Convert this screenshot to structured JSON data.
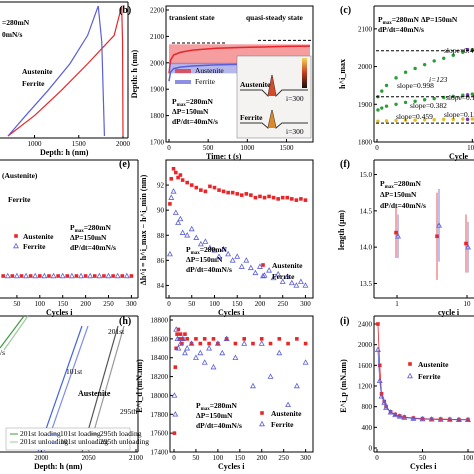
{
  "figure": {
    "panel_letters": [
      "(b)",
      "(c)",
      "(e)",
      "(f)",
      "(h)",
      "(i)"
    ]
  },
  "colors": {
    "austenite": "#e8262a",
    "ferrite": "#5b5fd6",
    "scatter_green": "#2a9d3a",
    "scatter_purple": "#7b2fb5",
    "scatter_yellow": "#e0c020",
    "ref_dark": "#222222"
  },
  "chart_data": [
    {
      "id": "a",
      "type": "line",
      "texts": {
        "top1": "=280mN",
        "top2": "0mN/s",
        "leg1": "Austenite",
        "leg2": "Ferrite"
      },
      "xlabel": "Depth: h (nm)",
      "xticks": [
        "1000",
        "1500",
        "2000"
      ],
      "xlim": [
        700,
        2000
      ],
      "series": [
        {
          "name": "Austenite",
          "color": "#e8262a",
          "load_x": [
            700,
            1000,
            1300,
            1600,
            1900,
            1985
          ],
          "unload_x": [
            1985,
            1995,
            2000
          ]
        },
        {
          "name": "Ferrite",
          "color": "#5b5fd6",
          "load_x": [
            700,
            900,
            1150,
            1400,
            1600,
            1720
          ],
          "unload_x": [
            1720,
            1760,
            1790
          ]
        }
      ]
    },
    {
      "id": "b",
      "type": "line",
      "texts": {
        "t1": "transient state",
        "t2": "quasi-steady state",
        "p1": "P",
        "p1sub": "max",
        "p1v": "=280mN",
        "p2": "ΔP=150mN",
        "p3": "dP/dt=40mN/s",
        "i1": "i=300",
        "i2": "i=300"
      },
      "legend": [
        "Austenite",
        "Ferrite"
      ],
      "inset_labels": [
        "Austenite",
        "Ferrite"
      ],
      "xlabel": "Time: t (s)",
      "ylabel": "Depth: h (nm)",
      "xticks": [
        "0",
        "500",
        "1000",
        "1500"
      ],
      "yticks": [
        "1700",
        "1800",
        "1900",
        "2000",
        "2100",
        "2200"
      ],
      "xlim": [
        0,
        1800
      ],
      "ylim": [
        1700,
        2200
      ],
      "series": [
        {
          "name": "Austenite",
          "color": "#e8262a",
          "band": [
            1995,
            2070
          ],
          "t": [
            0,
            20,
            60,
            150,
            300,
            600,
            900,
            1200,
            1500,
            1800
          ],
          "h": [
            1960,
            2010,
            2030,
            2040,
            2048,
            2055,
            2058,
            2060,
            2062,
            2063
          ]
        },
        {
          "name": "Ferrite",
          "color": "#5b5fd6",
          "band": [
            1960,
            2000
          ],
          "t": [
            0,
            20,
            60,
            150,
            300,
            600,
            900,
            1200,
            1500,
            1800
          ],
          "h": [
            1930,
            1965,
            1978,
            1984,
            1988,
            1992,
            1994,
            1995,
            1996,
            1997
          ]
        }
      ]
    },
    {
      "id": "c",
      "type": "scatter",
      "texts": {
        "p1": "P",
        "p1sub": "max",
        "p1v": "=280mN ΔP=150mN",
        "p2": "dP/dt=40mN/s",
        "i123": "i=123",
        "xlabel_partial": "Cycle"
      },
      "slopes": [
        "slope=0.467",
        "slope=0.998",
        "slope=0.156",
        "slope=0.382",
        "slope=0.459",
        "slope=0.131"
      ],
      "ylabel": "h^i_max",
      "xticks": [
        "0",
        "100"
      ],
      "yticks": [
        "1800",
        "1900",
        "2000",
        "2100"
      ],
      "xlim": [
        0,
        150
      ],
      "ylim": [
        1800,
        2150
      ],
      "series": [
        {
          "name": "Austenite upper",
          "color": "#2a9d3a",
          "x": [
            1,
            5,
            10,
            20,
            30,
            40,
            50,
            60,
            70,
            80,
            90,
            100,
            110,
            120,
            130,
            140,
            150
          ],
          "y": [
            1920,
            1935,
            1950,
            1970,
            1985,
            1995,
            2005,
            2015,
            2022,
            2030,
            2038,
            2045,
            2052,
            2058,
            2064,
            2070,
            2076
          ]
        },
        {
          "name": "Austenite upper (purple)",
          "color": "#7b2fb5",
          "x": [
            95,
            105,
            115,
            125,
            135,
            145,
            150
          ],
          "y": [
            2045,
            2055,
            2062,
            2070,
            2078,
            2085,
            2090
          ]
        },
        {
          "name": "Ferrite",
          "color": "#2a9d3a",
          "x": [
            1,
            5,
            10,
            20,
            30,
            40,
            50,
            60,
            70,
            80,
            90,
            100,
            110,
            120,
            130,
            140,
            150
          ],
          "y": [
            1885,
            1890,
            1895,
            1900,
            1905,
            1908,
            1912,
            1915,
            1918,
            1921,
            1924,
            1927,
            1930,
            1933,
            1936,
            1938,
            1940
          ]
        },
        {
          "name": "Ferrite (purple)",
          "color": "#7b2fb5",
          "x": [
            95,
            105,
            115,
            125,
            135,
            145,
            150
          ],
          "y": [
            1925,
            1928,
            1932,
            1935,
            1937,
            1940,
            1942
          ]
        },
        {
          "name": "low",
          "color": "#e0c020",
          "x": [
            1,
            10,
            20,
            30,
            40,
            50,
            60,
            70,
            80,
            90,
            100,
            110,
            120,
            130,
            140,
            150
          ],
          "y": [
            1855,
            1856,
            1857,
            1858,
            1858,
            1859,
            1859,
            1860,
            1860,
            1861,
            1861,
            1862,
            1862,
            1862,
            1863,
            1863
          ]
        },
        {
          "name": "low (purple)",
          "color": "#7b2fb5",
          "x": [
            95,
            110,
            125,
            140,
            150
          ],
          "y": [
            1860,
            1861,
            1862,
            1862,
            1863
          ]
        }
      ]
    },
    {
      "id": "d",
      "type": "scatter",
      "texts": {
        "leg_top": "(Austenite)",
        "leg_mid": "Ferrite",
        "legA": "Austenite",
        "legF": "Ferrite",
        "p1": "P",
        "p1sub": "max",
        "p1v": "=280mN",
        "p2": "ΔP=150mN",
        "p3": "dP/dt=40mN/s"
      },
      "xlabel": "Cycles i",
      "xticks": [
        "50",
        "100",
        "150",
        "200",
        "250",
        "300"
      ],
      "xlim": [
        0,
        310
      ],
      "series": [
        {
          "name": "Austenite",
          "color": "#e8262a",
          "x": [
            5,
            20,
            40,
            60,
            80,
            100,
            120,
            140,
            160,
            180,
            200,
            220,
            240,
            260,
            280,
            300
          ],
          "y": [
            0,
            0,
            0,
            0,
            0,
            0,
            0,
            0,
            0,
            0,
            0,
            0,
            0,
            0,
            0,
            0
          ]
        },
        {
          "name": "Ferrite",
          "color": "#5b5fd6",
          "x": [
            10,
            30,
            50,
            70,
            90,
            110,
            130,
            150,
            170,
            190,
            210,
            230,
            250,
            270,
            290
          ],
          "y": [
            0,
            0,
            0,
            0,
            0,
            0,
            0,
            0,
            0,
            0,
            0,
            0,
            0,
            0,
            0
          ]
        }
      ]
    },
    {
      "id": "e",
      "type": "scatter",
      "texts": {
        "p1": "P",
        "p1sub": "max",
        "p1v": "=280mN",
        "p2": "ΔP=150mN",
        "p3": "dP/dt=40mN/s"
      },
      "legend": [
        "Austenite",
        "Ferrite"
      ],
      "xlabel": "Cycles i",
      "ylabel": "Δh^i = h^i_max − h^i_min (nm)",
      "xticks": [
        "0",
        "50",
        "100",
        "150",
        "200",
        "250",
        "300"
      ],
      "yticks": [
        "84",
        "86",
        "88",
        "90",
        "92"
      ],
      "xlim": [
        0,
        310
      ],
      "ylim": [
        83,
        94
      ],
      "series": [
        {
          "name": "Austenite",
          "color": "#e8262a",
          "x": [
            2,
            5,
            10,
            15,
            20,
            25,
            30,
            40,
            50,
            60,
            70,
            80,
            90,
            100,
            110,
            120,
            130,
            140,
            150,
            160,
            170,
            180,
            190,
            200,
            210,
            220,
            230,
            240,
            250,
            260,
            270,
            280,
            290,
            300
          ],
          "y": [
            90.5,
            92.5,
            93.3,
            93.0,
            92.6,
            92.8,
            92.4,
            92.2,
            92.0,
            91.8,
            91.6,
            91.5,
            91.9,
            91.8,
            91.6,
            91.5,
            91.4,
            91.4,
            91.3,
            91.2,
            91.3,
            91.2,
            91.0,
            91.1,
            91.0,
            91.1,
            91.0,
            90.9,
            91.0,
            91.0,
            90.9,
            90.8,
            90.9,
            90.8
          ]
        },
        {
          "name": "Ferrite",
          "color": "#5b5fd6",
          "x": [
            2,
            5,
            10,
            15,
            20,
            25,
            30,
            40,
            50,
            60,
            70,
            80,
            90,
            100,
            110,
            120,
            130,
            140,
            150,
            160,
            170,
            180,
            190,
            200,
            210,
            220,
            230,
            240,
            250,
            260,
            270,
            280,
            290,
            300
          ],
          "y": [
            86.5,
            91.0,
            91.5,
            89.8,
            89.0,
            89.3,
            88.2,
            88.0,
            88.5,
            87.8,
            87.3,
            87.5,
            87.0,
            86.8,
            86.3,
            86.9,
            86.5,
            86.0,
            86.3,
            85.5,
            86.0,
            85.4,
            85.0,
            85.5,
            84.8,
            85.2,
            84.6,
            84.9,
            84.3,
            84.7,
            84.2,
            84.0,
            84.3,
            84.0
          ]
        }
      ]
    },
    {
      "id": "f",
      "type": "scatter",
      "texts": {
        "p1": "P",
        "p1sub": "max",
        "p1v": "=280mN",
        "p2": "ΔP=150mN",
        "p3": "dP/dt=40mN/s"
      },
      "xlabel": "cycle i",
      "ylabel": "length (μm)",
      "xticks": [
        "1",
        "10"
      ],
      "yticks": [
        "13.5",
        "14.0",
        "14.5",
        "15.0"
      ],
      "ylim": [
        13.3,
        15.2
      ],
      "series": [
        {
          "name": "Austenite",
          "color": "#e8262a",
          "x": [
            "1",
            "mid",
            "10"
          ],
          "y": [
            14.2,
            14.15,
            14.05
          ],
          "err": [
            0.35,
            0.6,
            0.4
          ]
        },
        {
          "name": "Ferrite",
          "color": "#5b5fd6",
          "x": [
            "1",
            "mid",
            "10"
          ],
          "y": [
            14.15,
            14.3,
            14.0
          ],
          "err": [
            0.3,
            0.5,
            0.35
          ]
        }
      ]
    },
    {
      "id": "g",
      "type": "line",
      "texts": {
        "c201": "201st",
        "c101": "101st",
        "c295": "295th",
        "mat": "Austenite",
        "s": "/s"
      },
      "legend": [
        "201st loading",
        "201st unloading",
        "101st loading",
        "101st unloading",
        "295th loading",
        "295th unloading"
      ],
      "xlabel": "Depth: h (nm)",
      "xticks": [
        "2000",
        "2050",
        "2100"
      ],
      "xlim": [
        1950,
        2100
      ]
    },
    {
      "id": "h",
      "type": "scatter",
      "texts": {
        "p1": "P",
        "p1sub": "max",
        "p1v": "=280mN",
        "p2": "ΔP=150mN",
        "p3": "dP/dt=40mN/s"
      },
      "legend": [
        "Austenite",
        "Ferrite"
      ],
      "xlabel": "Cycles i",
      "ylabel": "E^i_d (mN.nm)",
      "xticks": [
        "0",
        "50",
        "100",
        "150",
        "200",
        "250",
        "300"
      ],
      "yticks": [
        "17400",
        "17600",
        "17800",
        "18000",
        "18200",
        "18400",
        "18600",
        "18800"
      ],
      "xlim": [
        0,
        310
      ],
      "ylim": [
        17400,
        18800
      ],
      "series": [
        {
          "name": "Austenite",
          "color": "#e8262a",
          "x": [
            1,
            3,
            5,
            7,
            10,
            12,
            15,
            18,
            20,
            25,
            30,
            40,
            50,
            60,
            70,
            80,
            90,
            100,
            120,
            140,
            160,
            180,
            200,
            220,
            240,
            260,
            280,
            300
          ],
          "y": [
            17600,
            18300,
            18500,
            18650,
            18700,
            18600,
            18650,
            18550,
            18600,
            18650,
            18600,
            18550,
            18600,
            18550,
            18600,
            18550,
            18600,
            18550,
            18600,
            18550,
            18600,
            18550,
            18600,
            18550,
            18600,
            18550,
            18600,
            18550
          ]
        },
        {
          "name": "Ferrite",
          "color": "#5b5fd6",
          "x": [
            1,
            3,
            5,
            8,
            10,
            15,
            20,
            25,
            30,
            40,
            50,
            60,
            70,
            80,
            90,
            100,
            110,
            120,
            140,
            160,
            180,
            200,
            220,
            240,
            260,
            280,
            300
          ],
          "y": [
            18000,
            17800,
            18700,
            18600,
            18500,
            18550,
            18600,
            18450,
            18500,
            18550,
            18400,
            18450,
            18350,
            18500,
            18300,
            18550,
            18450,
            18600,
            18400,
            18550,
            18100,
            18550,
            18200,
            18450,
            17900,
            18100,
            18350
          ]
        }
      ]
    },
    {
      "id": "i",
      "type": "scatter",
      "legend": [
        "Austenite",
        "Ferrite"
      ],
      "xlabel": "Cycles i",
      "ylabel": "E^i_p (mN.nm)",
      "xticks": [
        "0",
        "50",
        "100"
      ],
      "yticks": [
        "0",
        "400",
        "800",
        "1200",
        "1600",
        "2000",
        "2400"
      ],
      "xlim": [
        0,
        100
      ],
      "ylim": [
        0,
        2400
      ],
      "series": [
        {
          "name": "Austenite",
          "color": "#e8262a",
          "x": [
            1,
            3,
            5,
            8,
            10,
            15,
            20,
            25,
            30,
            40,
            50,
            60,
            70,
            80,
            90,
            100
          ],
          "y": [
            2400,
            1600,
            1050,
            900,
            800,
            700,
            650,
            620,
            600,
            580,
            570,
            560,
            560,
            555,
            550,
            550
          ]
        },
        {
          "name": "Ferrite",
          "color": "#5b5fd6",
          "x": [
            1,
            3,
            5,
            8,
            10,
            15,
            20,
            25,
            30,
            40,
            50,
            60,
            70,
            80,
            90,
            100
          ],
          "y": [
            1900,
            1300,
            1000,
            880,
            780,
            690,
            640,
            610,
            590,
            570,
            560,
            555,
            550,
            550,
            545,
            545
          ]
        }
      ]
    }
  ]
}
